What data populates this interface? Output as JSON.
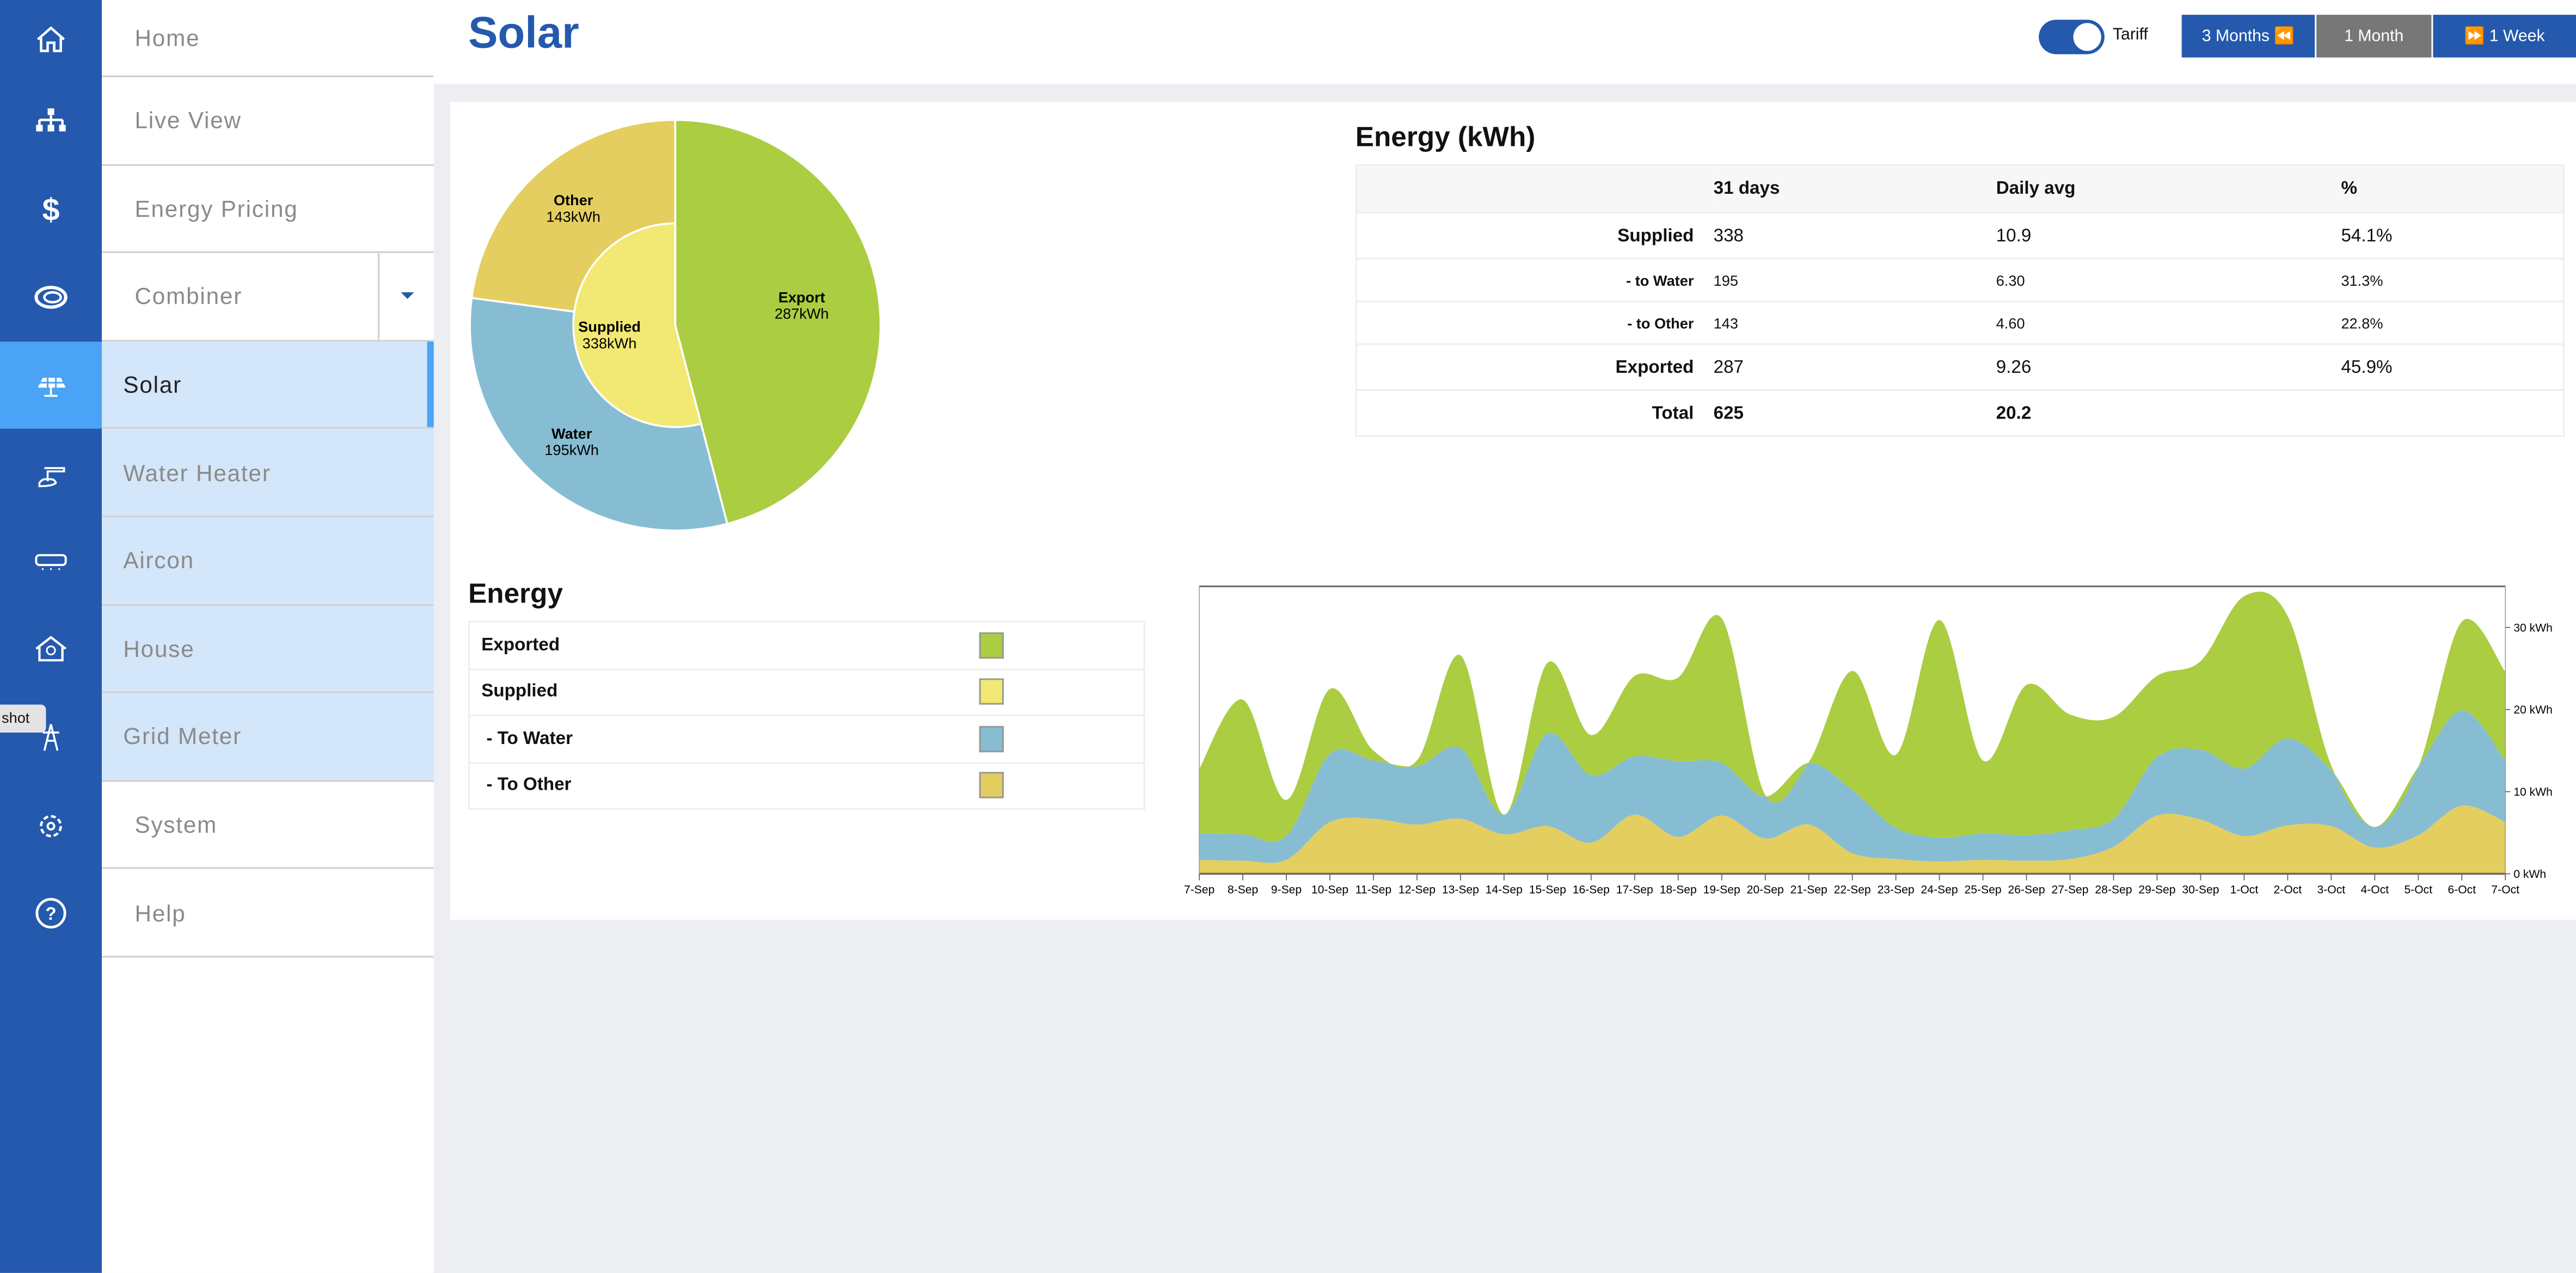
{
  "tooltip": "shot",
  "iconbar": [
    {
      "icon": "home-icon"
    },
    {
      "icon": "network-icon"
    },
    {
      "icon": "dollar-icon"
    },
    {
      "icon": "combiner-swirl-icon"
    },
    {
      "icon": "solar-panel-icon"
    },
    {
      "icon": "water-heater-icon"
    },
    {
      "icon": "aircon-icon"
    },
    {
      "icon": "house-bulb-icon"
    },
    {
      "icon": "power-pylon-icon"
    },
    {
      "icon": "gear-icon"
    },
    {
      "icon": "help-icon"
    }
  ],
  "menu": [
    {
      "label": "Home"
    },
    {
      "label": "Live View"
    },
    {
      "label": "Energy Pricing"
    },
    {
      "label": "Combiner"
    },
    {
      "label": "Solar"
    },
    {
      "label": "Water Heater"
    },
    {
      "label": "Aircon"
    },
    {
      "label": "House"
    },
    {
      "label": "Grid Meter"
    },
    {
      "label": "System"
    },
    {
      "label": "Help"
    }
  ],
  "header": {
    "title": "Solar",
    "toggle_label": "Tariff",
    "toggle_on": true,
    "buttons": [
      {
        "label": "3 Months ⏪"
      },
      {
        "label": "1 Month"
      },
      {
        "label": "⏩ 1 Week"
      }
    ]
  },
  "colors": {
    "exported": "#abcd42",
    "supplied": "#f2e874",
    "water": "#86bdd3",
    "other": "#e4ce5f",
    "brand": "#2459ad"
  },
  "pie": {
    "export": {
      "label": "Export",
      "value_text": "287kWh",
      "value": 287
    },
    "water": {
      "label": "Water",
      "value_text": "195kWh",
      "value": 195
    },
    "other": {
      "label": "Other",
      "value_text": "143kWh",
      "value": 143
    },
    "supplied": {
      "label": "Supplied",
      "value_text": "338kWh",
      "value": 338
    }
  },
  "energy_table": {
    "title": "Energy (kWh)",
    "headers": [
      "",
      "31 days",
      "Daily avg",
      "%"
    ],
    "rows": [
      [
        "Supplied",
        "338",
        "10.9",
        "54.1%"
      ],
      [
        "- to Water",
        "195",
        "6.30",
        "31.3%"
      ],
      [
        "- to Other",
        "143",
        "4.60",
        "22.8%"
      ],
      [
        "Exported",
        "287",
        "9.26",
        "45.9%"
      ],
      [
        "Total",
        "625",
        "20.2",
        ""
      ]
    ]
  },
  "legend": {
    "title": "Energy",
    "items": [
      {
        "label": "Exported",
        "color": "#abcd42"
      },
      {
        "label": "Supplied",
        "color": "#f2e874"
      },
      {
        "label": " - To Water",
        "color": "#86bdd3"
      },
      {
        "label": " - To Other",
        "color": "#e4ce5f"
      }
    ]
  },
  "chart_data": {
    "type": "area",
    "stacked": true,
    "x": [
      "7-Sep",
      "8-Sep",
      "9-Sep",
      "10-Sep",
      "11-Sep",
      "12-Sep",
      "13-Sep",
      "14-Sep",
      "15-Sep",
      "16-Sep",
      "17-Sep",
      "18-Sep",
      "19-Sep",
      "20-Sep",
      "21-Sep",
      "22-Sep",
      "23-Sep",
      "24-Sep",
      "25-Sep",
      "26-Sep",
      "27-Sep",
      "28-Sep",
      "29-Sep",
      "30-Sep",
      "1-Oct",
      "2-Oct",
      "3-Oct",
      "4-Oct",
      "5-Oct",
      "6-Oct",
      "7-Oct"
    ],
    "series": [
      {
        "name": "To Other",
        "color": "#e4ce5f",
        "values": [
          1.7,
          1.6,
          1.7,
          6.3,
          6.7,
          6.0,
          6.7,
          4.8,
          5.8,
          3.8,
          7.2,
          4.5,
          7.1,
          4.3,
          6.0,
          2.5,
          1.8,
          1.5,
          1.7,
          1.6,
          1.8,
          3.3,
          7.1,
          6.6,
          4.6,
          5.9,
          5.8,
          3.2,
          4.7,
          8.3,
          6.3
        ]
      },
      {
        "name": "To Water",
        "color": "#86bdd3",
        "values": [
          3.2,
          3.2,
          2.9,
          8.3,
          7.1,
          7.1,
          8.6,
          2.4,
          11.3,
          8.2,
          7.1,
          9.2,
          6.4,
          5.1,
          7.5,
          7.7,
          3.8,
          2.9,
          3.2,
          3.1,
          3.5,
          3.4,
          7.1,
          8.5,
          8.2,
          10.6,
          6.8,
          2.5,
          8.3,
          11.6,
          7.5
        ]
      },
      {
        "name": "Exported",
        "color": "#abcd42",
        "values": [
          7.9,
          16.4,
          4.4,
          7.9,
          1.2,
          0.7,
          11.3,
          0,
          8.6,
          4.9,
          9.8,
          10.2,
          17.6,
          0.2,
          0.1,
          14.5,
          8.9,
          26.5,
          8.9,
          18.3,
          14.1,
          12.4,
          9.9,
          10.8,
          21.0,
          14.9,
          0.6,
          0,
          0,
          10.8,
          10.8
        ]
      }
    ],
    "yticks": [
      {
        "v": 0,
        "label": "0 kWh"
      },
      {
        "v": 10,
        "label": "10 kWh"
      },
      {
        "v": 20,
        "label": "20 kWh"
      },
      {
        "v": 30,
        "label": "30 kWh"
      }
    ],
    "ylim": [
      0,
      35
    ],
    "ylabel_position": "right"
  }
}
